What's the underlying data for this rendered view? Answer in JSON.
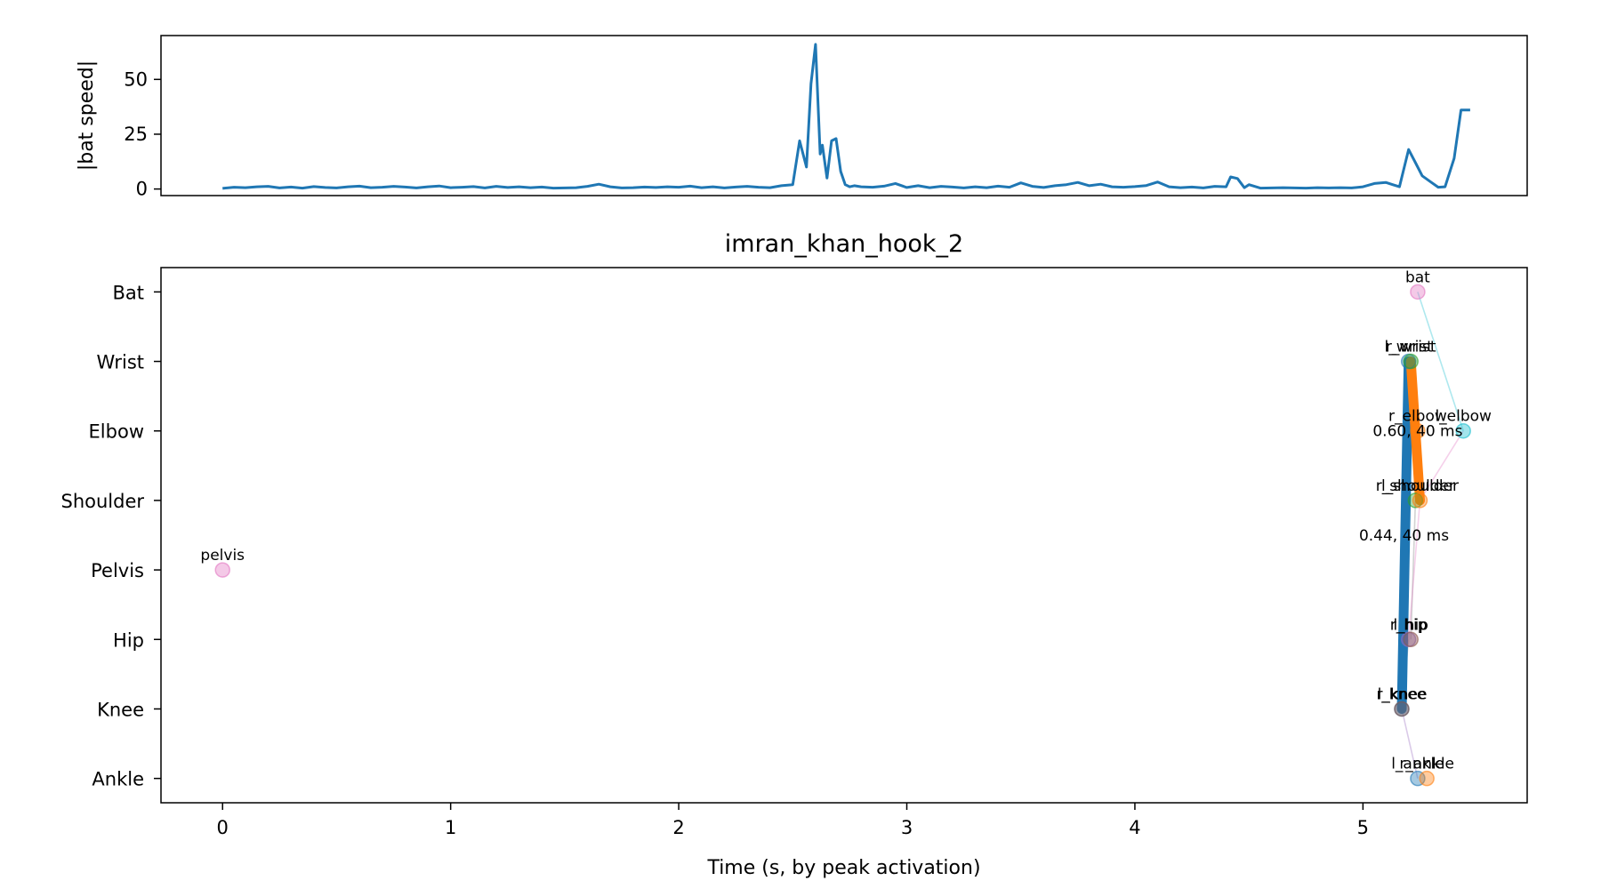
{
  "chart_data": [
    {
      "type": "line",
      "ylabel": "|bat speed|",
      "xlabel": "",
      "title": "",
      "xlim": [
        -0.27,
        5.72
      ],
      "ylim": [
        -3,
        70
      ],
      "yticks": [
        0,
        25,
        50
      ],
      "show_xticks": false,
      "grid": false,
      "series": [
        {
          "color": "#1f77b4",
          "x": [
            0.0,
            0.05,
            0.1,
            0.15,
            0.2,
            0.25,
            0.3,
            0.35,
            0.4,
            0.45,
            0.5,
            0.55,
            0.6,
            0.65,
            0.7,
            0.75,
            0.8,
            0.85,
            0.9,
            0.95,
            1.0,
            1.05,
            1.1,
            1.15,
            1.2,
            1.25,
            1.3,
            1.35,
            1.4,
            1.45,
            1.5,
            1.55,
            1.6,
            1.65,
            1.7,
            1.75,
            1.8,
            1.85,
            1.9,
            1.95,
            2.0,
            2.05,
            2.1,
            2.15,
            2.2,
            2.25,
            2.3,
            2.35,
            2.4,
            2.45,
            2.5,
            2.53,
            2.56,
            2.58,
            2.6,
            2.62,
            2.63,
            2.65,
            2.67,
            2.69,
            2.71,
            2.73,
            2.75,
            2.77,
            2.8,
            2.85,
            2.9,
            2.95,
            3.0,
            3.05,
            3.1,
            3.15,
            3.2,
            3.25,
            3.3,
            3.35,
            3.4,
            3.45,
            3.5,
            3.55,
            3.6,
            3.65,
            3.7,
            3.75,
            3.8,
            3.85,
            3.9,
            3.95,
            4.0,
            4.05,
            4.1,
            4.15,
            4.2,
            4.25,
            4.3,
            4.35,
            4.4,
            4.42,
            4.45,
            4.48,
            4.5,
            4.55,
            4.6,
            4.65,
            4.7,
            4.75,
            4.8,
            4.85,
            4.9,
            4.95,
            5.0,
            5.05,
            5.1,
            5.13,
            5.16,
            5.2,
            5.23,
            5.26,
            5.3,
            5.33,
            5.36,
            5.4,
            5.43,
            5.45,
            5.47
          ],
          "values": [
            0.3,
            0.8,
            0.6,
            1.0,
            1.2,
            0.5,
            0.9,
            0.4,
            1.1,
            0.7,
            0.5,
            1.0,
            1.3,
            0.6,
            0.8,
            1.2,
            0.9,
            0.5,
            1.0,
            1.4,
            0.6,
            0.8,
            1.1,
            0.5,
            1.2,
            0.7,
            1.0,
            0.6,
            0.9,
            0.4,
            0.5,
            0.6,
            1.2,
            2.2,
            1.0,
            0.5,
            0.6,
            0.9,
            0.7,
            1.0,
            0.8,
            1.3,
            0.6,
            1.0,
            0.5,
            0.9,
            1.2,
            0.8,
            0.6,
            1.5,
            2.0,
            22,
            10,
            48,
            66,
            16,
            20,
            5,
            22,
            23,
            8,
            2,
            1,
            1.5,
            1.0,
            0.8,
            1.3,
            2.5,
            0.7,
            1.5,
            0.6,
            1.2,
            0.9,
            0.5,
            1.0,
            0.6,
            1.3,
            0.8,
            2.8,
            1.2,
            0.7,
            1.5,
            2.0,
            3.0,
            1.5,
            2.2,
            1.0,
            0.8,
            1.1,
            1.6,
            3.2,
            1.0,
            0.6,
            0.9,
            0.5,
            1.2,
            1.0,
            5.5,
            4.8,
            0.6,
            2.0,
            0.4,
            0.5,
            0.6,
            0.5,
            0.4,
            0.6,
            0.5,
            0.6,
            0.5,
            1.0,
            2.5,
            3.0,
            2.0,
            1.0,
            18,
            12,
            6,
            3,
            0.8,
            1.0,
            14,
            36,
            36,
            36
          ]
        }
      ]
    },
    {
      "type": "scatter",
      "title": "imran_khan_hook_2",
      "xlabel": "Time (s, by peak activation)",
      "ylabel": "",
      "xlim": [
        -0.27,
        5.72
      ],
      "ylim": [
        -0.35,
        7.35
      ],
      "xticks": [
        0,
        1,
        2,
        3,
        4,
        5
      ],
      "yticks": [
        {
          "value": 7,
          "label": "Bat"
        },
        {
          "value": 6,
          "label": "Wrist"
        },
        {
          "value": 5,
          "label": "Elbow"
        },
        {
          "value": 4,
          "label": "Shoulder"
        },
        {
          "value": 3,
          "label": "Pelvis"
        },
        {
          "value": 2,
          "label": "Hip"
        },
        {
          "value": 1,
          "label": "Knee"
        },
        {
          "value": 0,
          "label": "Ankle"
        }
      ],
      "grid": false,
      "points": [
        {
          "label": "bat",
          "x": 5.24,
          "y": 7,
          "color": "#e377c2"
        },
        {
          "label": "l_wrist",
          "x": 5.2,
          "y": 6,
          "color": "#1f77b4"
        },
        {
          "label": "r_wrist",
          "x": 5.21,
          "y": 6,
          "color": "#2ca02c"
        },
        {
          "label": "r_elbow",
          "x": 5.24,
          "y": 5,
          "color": "#ff7f0e"
        },
        {
          "label": "l_elbow",
          "x": 5.44,
          "y": 5,
          "color": "#17becf"
        },
        {
          "label": "r_shoulder",
          "x": 5.23,
          "y": 4,
          "color": "#2ca02c"
        },
        {
          "label": "l_shoulder",
          "x": 5.25,
          "y": 4,
          "color": "#ff7f0e"
        },
        {
          "label": "pelvis",
          "x": 0.0,
          "y": 3,
          "color": "#e377c2"
        },
        {
          "label": "r_hip",
          "x": 5.2,
          "y": 2,
          "color": "#9467bd"
        },
        {
          "label": "l_hip",
          "x": 5.21,
          "y": 2,
          "color": "#8c564b"
        },
        {
          "label": "r_knee",
          "x": 5.17,
          "y": 1,
          "color": "#1f77b4"
        },
        {
          "label": "l_knee",
          "x": 5.17,
          "y": 1,
          "color": "#8c564b"
        },
        {
          "label": "l_ankle",
          "x": 5.24,
          "y": 0,
          "color": "#1f77b4"
        },
        {
          "label": "r_ankle",
          "x": 5.28,
          "y": 0,
          "color": "#ff7f0e"
        }
      ],
      "thin_lines": [
        {
          "color": "#17becf",
          "points": [
            [
              5.24,
              7
            ],
            [
              5.44,
              5
            ]
          ]
        },
        {
          "color": "#e377c2",
          "points": [
            [
              5.44,
              5
            ],
            [
              5.25,
              4
            ]
          ]
        },
        {
          "color": "#7f7f7f",
          "points": [
            [
              5.23,
              4
            ],
            [
              5.21,
              2
            ]
          ]
        },
        {
          "color": "#e377c2",
          "points": [
            [
              5.25,
              4
            ],
            [
              5.2,
              2
            ]
          ]
        },
        {
          "color": "#9467bd",
          "points": [
            [
              5.17,
              1
            ],
            [
              5.24,
              0
            ]
          ]
        },
        {
          "color": "#7f7f7f",
          "points": [
            [
              5.2,
              2
            ],
            [
              5.17,
              1
            ]
          ]
        }
      ],
      "thick_lines": [
        {
          "color": "#1f77b4",
          "points": [
            [
              5.2,
              6
            ],
            [
              5.17,
              1
            ]
          ]
        },
        {
          "color": "#ff7f0e",
          "points": [
            [
              5.21,
              6
            ],
            [
              5.25,
              4
            ]
          ]
        }
      ],
      "annotations": [
        {
          "text": "0.60, 40 ms",
          "x": 5.24,
          "y": 5
        },
        {
          "text": "0.44, 40 ms",
          "x": 5.18,
          "y": 3.5
        }
      ]
    }
  ]
}
